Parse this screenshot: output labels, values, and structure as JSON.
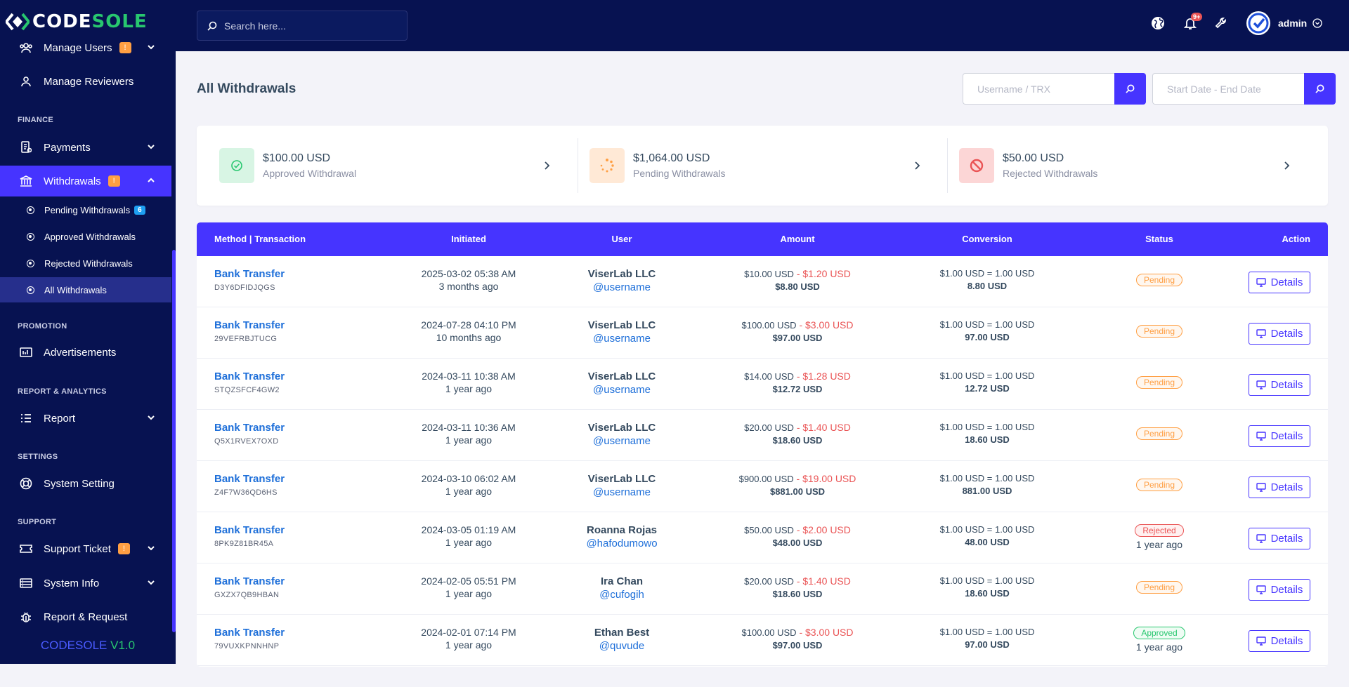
{
  "brand": {
    "code": "CODE",
    "sole": "SOLE"
  },
  "sidebar": {
    "items": [
      {
        "label": "Manage Users",
        "badge": "!"
      },
      {
        "label": "Manage Reviewers"
      },
      {
        "label": "Payments"
      },
      {
        "label": "Withdrawals",
        "badge": "!"
      },
      {
        "label": "Advertisements"
      },
      {
        "label": "Report"
      },
      {
        "label": "System Setting"
      },
      {
        "label": "Support Ticket",
        "badge": "!"
      },
      {
        "label": "System Info"
      },
      {
        "label": "Report & Request"
      }
    ],
    "sections": [
      "FINANCE",
      "PROMOTION",
      "REPORT & ANALYTICS",
      "SETTINGS",
      "SUPPORT"
    ],
    "sub_items": [
      {
        "label": "Pending Withdrawals",
        "badge": "6"
      },
      {
        "label": "Approved Withdrawals"
      },
      {
        "label": "Rejected Withdrawals"
      },
      {
        "label": "All Withdrawals"
      }
    ],
    "version_name": "CODESOLE",
    "version_num": "V1.0"
  },
  "topbar": {
    "search_placeholder": "Search here...",
    "notif_count": "9+",
    "user_name": "admin"
  },
  "page": {
    "title": "All Withdrawals",
    "filter_user_placeholder": "Username / TRX",
    "filter_date_placeholder": "Start Date - End Date"
  },
  "stats": [
    {
      "amount": "$100.00 USD",
      "label": "Approved Withdrawal"
    },
    {
      "amount": "$1,064.00 USD",
      "label": "Pending Withdrawals"
    },
    {
      "amount": "$50.00 USD",
      "label": "Rejected Withdrawals"
    }
  ],
  "table": {
    "headers": [
      "Method | Transaction",
      "Initiated",
      "User",
      "Amount",
      "Conversion",
      "Status",
      "Action"
    ],
    "details_label": "Details",
    "rows": [
      {
        "method": "Bank Transfer",
        "trx": "D3Y6DFIDJQGS",
        "date": "2025-03-02 05:38 AM",
        "ago": "3 months ago",
        "user": "ViserLab LLC",
        "handle": "@username",
        "amount": "$10.00 USD",
        "sep": " - ",
        "charge": "$1.20 USD",
        "net": "$8.80 USD",
        "conv": "$1.00 USD = 1.00 USD",
        "conv_net": "8.80 USD",
        "status": "Pending",
        "status_ago": ""
      },
      {
        "method": "Bank Transfer",
        "trx": "29VEFRBJTUCG",
        "date": "2024-07-28 04:10 PM",
        "ago": "10 months ago",
        "user": "ViserLab LLC",
        "handle": "@username",
        "amount": "$100.00 USD",
        "sep": " - ",
        "charge": "$3.00 USD",
        "net": "$97.00 USD",
        "conv": "$1.00 USD = 1.00 USD",
        "conv_net": "97.00 USD",
        "status": "Pending",
        "status_ago": ""
      },
      {
        "method": "Bank Transfer",
        "trx": "STQZSFCF4GW2",
        "date": "2024-03-11 10:38 AM",
        "ago": "1 year ago",
        "user": "ViserLab LLC",
        "handle": "@username",
        "amount": "$14.00 USD",
        "sep": " - ",
        "charge": "$1.28 USD",
        "net": "$12.72 USD",
        "conv": "$1.00 USD = 1.00 USD",
        "conv_net": "12.72 USD",
        "status": "Pending",
        "status_ago": ""
      },
      {
        "method": "Bank Transfer",
        "trx": "Q5X1RVEX7OXD",
        "date": "2024-03-11 10:36 AM",
        "ago": "1 year ago",
        "user": "ViserLab LLC",
        "handle": "@username",
        "amount": "$20.00 USD",
        "sep": " - ",
        "charge": "$1.40 USD",
        "net": "$18.60 USD",
        "conv": "$1.00 USD = 1.00 USD",
        "conv_net": "18.60 USD",
        "status": "Pending",
        "status_ago": ""
      },
      {
        "method": "Bank Transfer",
        "trx": "Z4F7W36QD6HS",
        "date": "2024-03-10 06:02 AM",
        "ago": "1 year ago",
        "user": "ViserLab LLC",
        "handle": "@username",
        "amount": "$900.00 USD",
        "sep": " - ",
        "charge": "$19.00 USD",
        "net": "$881.00 USD",
        "conv": "$1.00 USD = 1.00 USD",
        "conv_net": "881.00 USD",
        "status": "Pending",
        "status_ago": ""
      },
      {
        "method": "Bank Transfer",
        "trx": "8PK9Z81BR45A",
        "date": "2024-03-05 01:19 AM",
        "ago": "1 year ago",
        "user": "Roanna Rojas",
        "handle": "@hafodumowo",
        "amount": "$50.00 USD",
        "sep": " - ",
        "charge": "$2.00 USD",
        "net": "$48.00 USD",
        "conv": "$1.00 USD = 1.00 USD",
        "conv_net": "48.00 USD",
        "status": "Rejected",
        "status_ago": "1 year ago"
      },
      {
        "method": "Bank Transfer",
        "trx": "GXZX7QB9HBAN",
        "date": "2024-02-05 05:51 PM",
        "ago": "1 year ago",
        "user": "Ira Chan",
        "handle": "@cufogih",
        "amount": "$20.00 USD",
        "sep": " - ",
        "charge": "$1.40 USD",
        "net": "$18.60 USD",
        "conv": "$1.00 USD = 1.00 USD",
        "conv_net": "18.60 USD",
        "status": "Pending",
        "status_ago": ""
      },
      {
        "method": "Bank Transfer",
        "trx": "79VUXKPNNHNP",
        "date": "2024-02-01 07:14 PM",
        "ago": "1 year ago",
        "user": "Ethan Best",
        "handle": "@quvude",
        "amount": "$100.00 USD",
        "sep": " - ",
        "charge": "$3.00 USD",
        "net": "$97.00 USD",
        "conv": "$1.00 USD = 1.00 USD",
        "conv_net": "97.00 USD",
        "status": "Approved",
        "status_ago": "1 year ago"
      }
    ]
  },
  "colors": {
    "primary": "#4634ff",
    "navy": "#071251",
    "pending": "#ff9f43",
    "rejected": "#ea5455",
    "approved": "#28c76f",
    "link": "#1e6fd9"
  }
}
